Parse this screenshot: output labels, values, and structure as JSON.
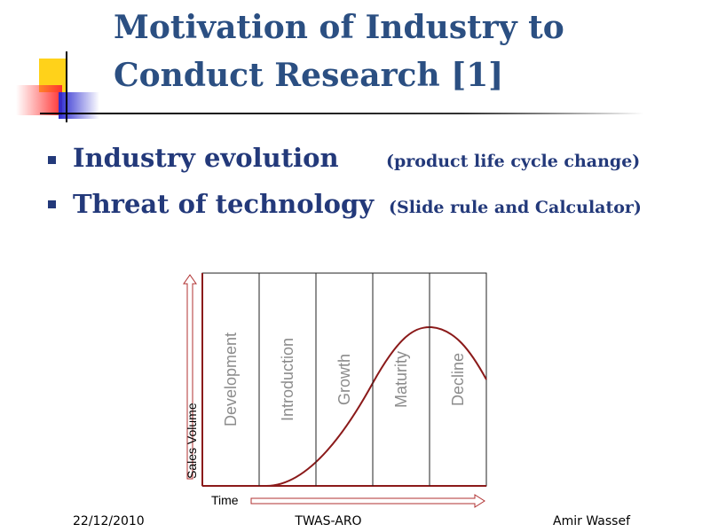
{
  "header": {
    "title_lines": [
      "Motivation of Industry to",
      "Conduct Research  [1]"
    ]
  },
  "bullets": [
    {
      "text": "Industry evolution",
      "note": "(product life cycle change)"
    },
    {
      "text": "Threat of technology",
      "note": "(Slide rule and Calculator)"
    }
  ],
  "diagram": {
    "stages": [
      "Development",
      "Introduction",
      "Growth",
      "Maturity",
      "Decline"
    ],
    "y_label": "Sales Volume",
    "x_label": "Time"
  },
  "footer": {
    "date": "22/12/2010",
    "center": "TWAS-ARO",
    "author": "Amir Wassef"
  }
}
